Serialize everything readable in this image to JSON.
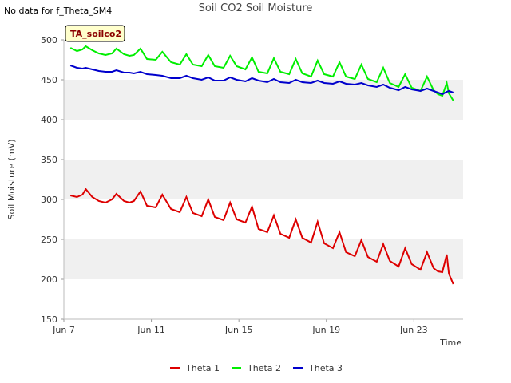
{
  "header": {
    "no_data_text": "No data for f_Theta_SM4",
    "title": "Soil CO2 Soil Moisture"
  },
  "site_badge": "TA_soilco2",
  "colors": {
    "theta1": "#dd0000",
    "theta2": "#00ee00",
    "theta3": "#0000cc",
    "band": "#f0f0f0"
  },
  "chart_data": {
    "type": "line",
    "title": "Soil CO2 Soil Moisture",
    "xlabel": "Time",
    "ylabel": "Soil Moisture (mV)",
    "ylim": [
      150,
      500
    ],
    "xlim": [
      "Jun 7",
      "Jun 25"
    ],
    "yticks": [
      150,
      200,
      250,
      300,
      350,
      400,
      450,
      500
    ],
    "xticks": [
      {
        "label": "Jun 7",
        "day": 7
      },
      {
        "label": "Jun 11",
        "day": 11
      },
      {
        "label": "Jun 15",
        "day": 15
      },
      {
        "label": "Jun 19",
        "day": 19
      },
      {
        "label": "Jun 23",
        "day": 23
      }
    ],
    "grid": "horizontal bands",
    "legend_position": "bottom",
    "series": [
      {
        "name": "Theta 1",
        "x": [
          7.3,
          7.6,
          7.85,
          8.0,
          8.3,
          8.6,
          8.9,
          9.2,
          9.4,
          9.75,
          10.0,
          10.2,
          10.5,
          10.8,
          11.2,
          11.5,
          11.9,
          12.3,
          12.6,
          12.9,
          13.3,
          13.6,
          13.9,
          14.3,
          14.6,
          14.9,
          15.3,
          15.6,
          15.9,
          16.3,
          16.6,
          16.9,
          17.3,
          17.6,
          17.9,
          18.3,
          18.6,
          18.9,
          19.3,
          19.6,
          19.9,
          20.3,
          20.6,
          20.9,
          21.3,
          21.6,
          21.9,
          22.3,
          22.6,
          22.9,
          23.3,
          23.6,
          23.9,
          24.1,
          24.3,
          24.5,
          24.6,
          24.8
        ],
        "y": [
          305,
          303,
          306,
          313,
          303,
          298,
          296,
          300,
          307,
          298,
          296,
          298,
          310,
          292,
          290,
          306,
          288,
          284,
          303,
          283,
          279,
          300,
          278,
          274,
          296,
          275,
          271,
          291,
          263,
          259,
          280,
          257,
          252,
          275,
          252,
          246,
          272,
          245,
          239,
          259,
          234,
          229,
          249,
          228,
          222,
          244,
          223,
          216,
          239,
          219,
          212,
          234,
          214,
          210,
          209,
          231,
          207,
          194
        ]
      },
      {
        "name": "Theta 2",
        "x": [
          7.3,
          7.6,
          7.85,
          8.0,
          8.3,
          8.6,
          8.9,
          9.2,
          9.4,
          9.75,
          10.0,
          10.2,
          10.5,
          10.8,
          11.2,
          11.5,
          11.9,
          12.3,
          12.6,
          12.9,
          13.3,
          13.6,
          13.9,
          14.3,
          14.6,
          14.9,
          15.3,
          15.6,
          15.9,
          16.3,
          16.6,
          16.9,
          17.3,
          17.6,
          17.9,
          18.3,
          18.6,
          18.9,
          19.3,
          19.6,
          19.9,
          20.3,
          20.6,
          20.9,
          21.3,
          21.6,
          21.9,
          22.3,
          22.6,
          22.9,
          23.3,
          23.6,
          23.9,
          24.1,
          24.3,
          24.5,
          24.6,
          24.8
        ],
        "y": [
          490,
          486,
          488,
          492,
          487,
          483,
          481,
          483,
          489,
          482,
          480,
          481,
          489,
          476,
          475,
          485,
          472,
          469,
          482,
          469,
          467,
          481,
          467,
          465,
          480,
          467,
          463,
          478,
          460,
          458,
          477,
          460,
          457,
          476,
          458,
          454,
          474,
          457,
          454,
          472,
          454,
          451,
          469,
          451,
          447,
          465,
          446,
          441,
          457,
          440,
          436,
          454,
          437,
          432,
          430,
          446,
          433,
          424
        ]
      },
      {
        "name": "Theta 3",
        "x": [
          7.3,
          7.6,
          7.85,
          8.0,
          8.3,
          8.6,
          8.9,
          9.2,
          9.4,
          9.75,
          10.0,
          10.2,
          10.5,
          10.8,
          11.2,
          11.5,
          11.9,
          12.3,
          12.6,
          12.9,
          13.3,
          13.6,
          13.9,
          14.3,
          14.6,
          14.9,
          15.3,
          15.6,
          15.9,
          16.3,
          16.6,
          16.9,
          17.3,
          17.6,
          17.9,
          18.3,
          18.6,
          18.9,
          19.3,
          19.6,
          19.9,
          20.3,
          20.6,
          20.9,
          21.3,
          21.6,
          21.9,
          22.3,
          22.6,
          22.9,
          23.3,
          23.6,
          23.9,
          24.1,
          24.3,
          24.5,
          24.6,
          24.8
        ],
        "y": [
          468,
          465,
          464,
          465,
          463,
          461,
          460,
          460,
          462,
          459,
          459,
          458,
          460,
          457,
          456,
          455,
          452,
          452,
          455,
          452,
          450,
          453,
          449,
          449,
          453,
          450,
          448,
          452,
          449,
          447,
          451,
          447,
          446,
          450,
          447,
          446,
          449,
          446,
          445,
          448,
          445,
          444,
          446,
          443,
          441,
          444,
          440,
          437,
          441,
          438,
          436,
          439,
          436,
          434,
          432,
          435,
          436,
          434
        ]
      }
    ]
  }
}
